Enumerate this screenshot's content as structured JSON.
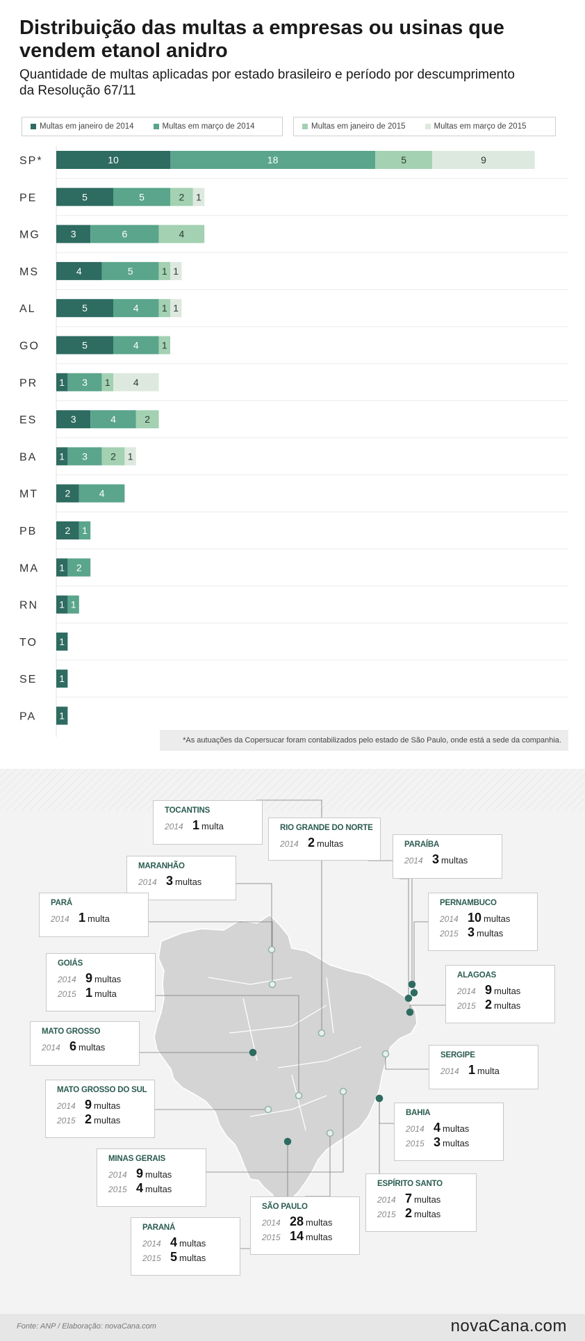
{
  "header": {
    "title": "Distribuição das multas a empresas ou usinas que vendem etanol anidro",
    "subtitle": "Quantidade de multas aplicadas por estado brasileiro e período por descumprimento da Resolução 67/11"
  },
  "colors": {
    "jan2014": "#2e6b61",
    "mar2014": "#5aa58b",
    "jan2015": "#a3d1b2",
    "mar2015": "#dde9df"
  },
  "chart_data": {
    "type": "bar",
    "orientation": "horizontal",
    "stacked": true,
    "categories": [
      "SP*",
      "PE",
      "MG",
      "MS",
      "AL",
      "GO",
      "PR",
      "ES",
      "BA",
      "MT",
      "PB",
      "MA",
      "RN",
      "TO",
      "SE",
      "PA"
    ],
    "series": [
      {
        "name": "Multas em janeiro de 2014",
        "color": "#2e6b61",
        "values": [
          10,
          5,
          3,
          4,
          5,
          5,
          1,
          3,
          1,
          2,
          2,
          1,
          1,
          1,
          1,
          1
        ]
      },
      {
        "name": "Multas em março de 2014",
        "color": "#5aa58b",
        "values": [
          18,
          5,
          6,
          5,
          4,
          4,
          3,
          4,
          3,
          4,
          1,
          2,
          1,
          0,
          0,
          0
        ]
      },
      {
        "name": "Multas em janeiro de 2015",
        "color": "#a3d1b2",
        "values": [
          5,
          2,
          4,
          1,
          1,
          1,
          1,
          2,
          2,
          0,
          0,
          0,
          0,
          0,
          0,
          0
        ]
      },
      {
        "name": "Multas em março de 2015",
        "color": "#dde9df",
        "values": [
          9,
          1,
          0,
          1,
          1,
          0,
          4,
          0,
          1,
          0,
          0,
          0,
          0,
          0,
          0,
          0
        ]
      }
    ],
    "legend_placement": "top",
    "grid": false
  },
  "footnote": "*As autuações da Copersucar foram contabilizados pelo estado de São Paulo, onde está a sede da companhia.",
  "map": {
    "states": [
      {
        "id": "to",
        "name": "TOCANTINS",
        "lines": [
          {
            "year": "2014",
            "count": "1",
            "unit": "multa"
          }
        ]
      },
      {
        "id": "rn",
        "name": "RIO GRANDE DO NORTE",
        "lines": [
          {
            "year": "2014",
            "count": "2",
            "unit": "multas"
          }
        ]
      },
      {
        "id": "pb",
        "name": "PARAÍBA",
        "lines": [
          {
            "year": "2014",
            "count": "3",
            "unit": "multas"
          }
        ]
      },
      {
        "id": "ma",
        "name": "MARANHÃO",
        "lines": [
          {
            "year": "2014",
            "count": "3",
            "unit": "multas"
          }
        ]
      },
      {
        "id": "pa",
        "name": "PARÁ",
        "lines": [
          {
            "year": "2014",
            "count": "1",
            "unit": "multa"
          }
        ]
      },
      {
        "id": "pe",
        "name": "PERNAMBUCO",
        "lines": [
          {
            "year": "2014",
            "count": "10",
            "unit": "multas"
          },
          {
            "year": "2015",
            "count": "3",
            "unit": "multas"
          }
        ]
      },
      {
        "id": "go",
        "name": "GOIÁS",
        "lines": [
          {
            "year": "2014",
            "count": "9",
            "unit": "multas"
          },
          {
            "year": "2015",
            "count": "1",
            "unit": "multa"
          }
        ]
      },
      {
        "id": "al",
        "name": "ALAGOAS",
        "lines": [
          {
            "year": "2014",
            "count": "9",
            "unit": "multas"
          },
          {
            "year": "2015",
            "count": "2",
            "unit": "multas"
          }
        ]
      },
      {
        "id": "mt",
        "name": "MATO GROSSO",
        "lines": [
          {
            "year": "2014",
            "count": "6",
            "unit": "multas"
          }
        ]
      },
      {
        "id": "se",
        "name": "SERGIPE",
        "lines": [
          {
            "year": "2014",
            "count": "1",
            "unit": "multa"
          }
        ]
      },
      {
        "id": "ms",
        "name": "MATO GROSSO DO SUL",
        "lines": [
          {
            "year": "2014",
            "count": "9",
            "unit": "multas"
          },
          {
            "year": "2015",
            "count": "2",
            "unit": "multas"
          }
        ]
      },
      {
        "id": "ba",
        "name": "BAHIA",
        "lines": [
          {
            "year": "2014",
            "count": "4",
            "unit": "multas"
          },
          {
            "year": "2015",
            "count": "3",
            "unit": "multas"
          }
        ]
      },
      {
        "id": "mg",
        "name": "MINAS GERAIS",
        "lines": [
          {
            "year": "2014",
            "count": "9",
            "unit": "multas"
          },
          {
            "year": "2015",
            "count": "4",
            "unit": "multas"
          }
        ]
      },
      {
        "id": "es",
        "name": "ESPÍRITO SANTO",
        "lines": [
          {
            "year": "2014",
            "count": "7",
            "unit": "multas"
          },
          {
            "year": "2015",
            "count": "2",
            "unit": "multas"
          }
        ]
      },
      {
        "id": "sp",
        "name": "SÃO PAULO",
        "lines": [
          {
            "year": "2014",
            "count": "28",
            "unit": "multas"
          },
          {
            "year": "2015",
            "count": "14",
            "unit": "multas"
          }
        ]
      },
      {
        "id": "pr",
        "name": "PARANÁ",
        "lines": [
          {
            "year": "2014",
            "count": "4",
            "unit": "multas"
          },
          {
            "year": "2015",
            "count": "5",
            "unit": "multas"
          }
        ]
      }
    ]
  },
  "footer": {
    "source": "Fonte: ANP / Elaboração: novaCana.com",
    "brand": "novaCana.com"
  }
}
